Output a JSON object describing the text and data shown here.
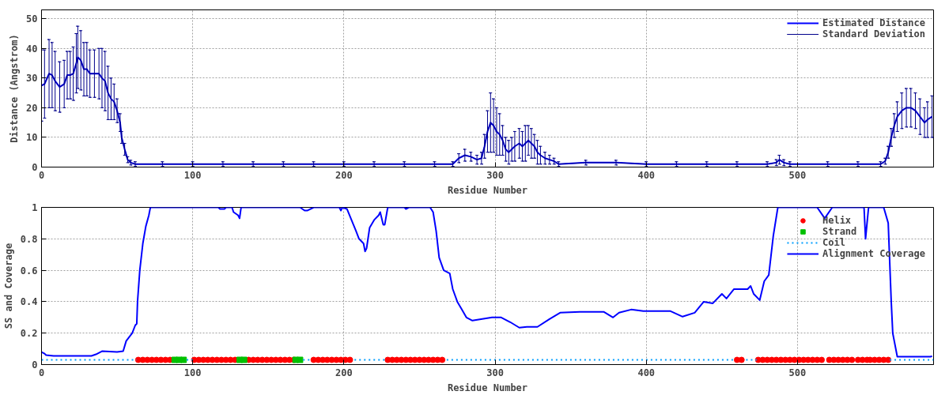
{
  "chart_data": [
    {
      "type": "line",
      "xlabel": "Residue Number",
      "ylabel": "Distance (Angstrom)",
      "xlim": [
        0,
        590
      ],
      "ylim": [
        0,
        53
      ],
      "xticks": [
        0,
        100,
        200,
        300,
        400,
        500
      ],
      "yticks": [
        0,
        10,
        20,
        30,
        40,
        50
      ],
      "grid": true,
      "legend": "top right",
      "x": [
        0,
        2,
        5,
        7,
        9,
        12,
        15,
        17,
        19,
        21,
        23,
        24,
        26,
        28,
        30,
        32,
        35,
        38,
        40,
        42,
        44,
        46,
        48,
        50,
        52,
        53,
        55,
        57,
        59,
        62,
        80,
        100,
        120,
        140,
        160,
        180,
        200,
        220,
        240,
        260,
        272,
        276,
        280,
        284,
        288,
        291,
        293,
        295,
        297,
        299,
        301,
        303,
        305,
        307,
        309,
        311,
        313,
        316,
        318,
        320,
        322,
        324,
        326,
        328,
        330,
        333,
        336,
        339,
        342,
        360,
        380,
        400,
        420,
        440,
        460,
        480,
        486,
        488,
        491,
        495,
        520,
        540,
        555,
        558,
        560,
        562,
        564,
        566,
        569,
        572,
        575,
        578,
        581,
        584,
        586,
        589
      ],
      "series": [
        {
          "name": "Estimated Distance",
          "color": "#0000ff",
          "values": [
            27.5,
            28,
            31.5,
            31,
            29,
            27,
            28,
            31,
            31,
            31.5,
            35,
            37,
            36,
            33,
            33,
            31.5,
            31.5,
            31.5,
            30,
            29,
            25,
            23,
            22,
            19,
            15,
            10,
            6,
            2.5,
            1.5,
            1,
            1,
            1,
            1,
            1,
            1,
            1,
            1,
            1,
            1,
            1,
            1,
            3,
            4,
            3.5,
            2.5,
            3,
            7,
            12,
            15,
            14,
            12,
            11,
            9,
            6,
            5,
            6,
            7,
            8,
            7,
            8,
            9,
            8,
            7,
            5,
            4,
            3,
            2.5,
            2,
            1,
            1.5,
            1.5,
            1,
            1,
            1,
            1,
            1,
            1.5,
            2.5,
            1.5,
            1,
            1,
            1,
            1,
            2,
            5,
            10,
            14,
            17,
            19,
            20,
            20,
            19,
            17,
            15,
            16,
            17
          ]
        },
        {
          "name": "Standard Deviation",
          "color": "#00008b",
          "values": [
            27.5,
            28,
            31.5,
            31,
            29,
            27,
            28,
            31,
            31,
            31.5,
            35,
            37,
            36,
            33,
            33,
            31.5,
            31.5,
            31.5,
            30,
            29,
            25,
            23,
            22,
            19,
            15,
            10,
            6,
            2.5,
            1.5,
            1,
            1,
            1,
            1,
            1,
            1,
            1,
            1,
            1,
            1,
            1,
            1,
            3,
            4,
            3.5,
            2.5,
            3,
            7,
            12,
            15,
            14,
            12,
            11,
            9,
            6,
            5,
            6,
            7,
            8,
            7,
            8,
            9,
            8,
            7,
            5,
            4,
            3,
            2.5,
            2,
            1,
            1.5,
            1.5,
            1,
            1,
            1,
            1,
            1,
            1.5,
            2.5,
            1.5,
            1,
            1,
            1,
            1,
            2,
            5,
            10,
            14,
            17,
            19,
            20,
            20,
            19,
            17,
            15,
            16,
            17
          ],
          "errors": [
            12,
            11.5,
            11.5,
            11,
            10,
            8.5,
            8,
            8,
            8,
            9,
            10,
            10.5,
            10,
            9,
            9,
            8,
            8,
            8.5,
            10,
            10,
            9,
            7,
            6,
            4,
            3,
            2,
            2,
            1,
            0.8,
            0.8,
            0.8,
            0.8,
            0.8,
            0.8,
            0.8,
            0.8,
            0.8,
            0.8,
            0.8,
            0.8,
            0.8,
            1.5,
            2,
            1.5,
            1.5,
            2,
            4,
            7,
            10,
            9,
            8,
            7,
            5,
            4,
            4,
            4,
            5,
            5,
            5,
            6,
            5,
            5,
            4,
            4,
            3,
            2,
            1.5,
            1,
            0.8,
            0.8,
            0.8,
            0.8,
            0.8,
            0.8,
            0.8,
            0.8,
            1,
            1.5,
            1,
            0.8,
            0.8,
            0.8,
            0.8,
            1,
            2,
            3,
            4,
            5,
            6,
            6.5,
            6.5,
            6,
            6,
            5,
            6,
            7
          ]
        }
      ]
    },
    {
      "type": "line",
      "xlabel": "Residue Number",
      "ylabel": "SS and Coverage",
      "xlim": [
        0,
        590
      ],
      "ylim": [
        0,
        1
      ],
      "xticks": [
        0,
        100,
        200,
        300,
        400,
        500
      ],
      "yticks": [
        0,
        0.2,
        0.4,
        0.6,
        0.8,
        1
      ],
      "grid": true,
      "legend": "top right",
      "series": [
        {
          "name": "Helix",
          "type": "scatter",
          "marker": "circle",
          "color": "#ff0000",
          "x": [
            64,
            67,
            70,
            73,
            76,
            79,
            82,
            85,
            101,
            104,
            107,
            110,
            113,
            116,
            119,
            122,
            125,
            128,
            137,
            140,
            143,
            146,
            149,
            152,
            155,
            158,
            161,
            164,
            167,
            180,
            183,
            186,
            189,
            192,
            195,
            198,
            201,
            204,
            229,
            232,
            235,
            238,
            241,
            244,
            247,
            250,
            253,
            256,
            259,
            262,
            265,
            460,
            463,
            474,
            477,
            480,
            483,
            486,
            489,
            492,
            495,
            498,
            501,
            504,
            507,
            510,
            513,
            516,
            521,
            524,
            527,
            530,
            533,
            536,
            540,
            543,
            546,
            548,
            551,
            554,
            557,
            560
          ],
          "values": [
            0.03,
            0.03,
            0.03,
            0.03,
            0.03,
            0.03,
            0.03,
            0.03,
            0.03,
            0.03,
            0.03,
            0.03,
            0.03,
            0.03,
            0.03,
            0.03,
            0.03,
            0.03,
            0.03,
            0.03,
            0.03,
            0.03,
            0.03,
            0.03,
            0.03,
            0.03,
            0.03,
            0.03,
            0.03,
            0.03,
            0.03,
            0.03,
            0.03,
            0.03,
            0.03,
            0.03,
            0.03,
            0.03,
            0.03,
            0.03,
            0.03,
            0.03,
            0.03,
            0.03,
            0.03,
            0.03,
            0.03,
            0.03,
            0.03,
            0.03,
            0.03,
            0.03,
            0.03,
            0.03,
            0.03,
            0.03,
            0.03,
            0.03,
            0.03,
            0.03,
            0.03,
            0.03,
            0.03,
            0.03,
            0.03,
            0.03,
            0.03,
            0.03,
            0.03,
            0.03,
            0.03,
            0.03,
            0.03,
            0.03,
            0.03,
            0.03,
            0.03,
            0.03,
            0.03,
            0.03,
            0.03,
            0.03
          ]
        },
        {
          "name": "Strand",
          "type": "scatter",
          "marker": "square",
          "color": "#00c000",
          "x": [
            88,
            91,
            94,
            131,
            134,
            168,
            171
          ],
          "values": [
            0.03,
            0.03,
            0.03,
            0.03,
            0.03,
            0.03,
            0.03
          ]
        },
        {
          "name": "Coil",
          "line_style": "dotted",
          "color": "#009eff",
          "x": [
            0,
            63,
            63.5,
            96,
            100,
            100.5,
            173,
            179,
            179.5,
            207,
            228,
            228.5,
            268,
            459,
            459.5,
            466,
            473,
            473.5,
            561,
            590
          ],
          "values": [
            0.03,
            0.03,
            null,
            0.03,
            0.03,
            null,
            0.03,
            0.03,
            null,
            0.03,
            0.03,
            null,
            0.03,
            0.03,
            null,
            0.03,
            0.03,
            null,
            0.03,
            0.03
          ]
        },
        {
          "name": "Alignment Coverage",
          "color": "#0000ff",
          "x": [
            0,
            2,
            3,
            8,
            33,
            36,
            40,
            50,
            54,
            56,
            60,
            62,
            63,
            63.5,
            65,
            67,
            69,
            71,
            72,
            117,
            118,
            121,
            122,
            126,
            127,
            130,
            131,
            132,
            171,
            174,
            176,
            180,
            197,
            198,
            199,
            202,
            205,
            208,
            210,
            213,
            214,
            215,
            217,
            220,
            223,
            224,
            226,
            227,
            229,
            240,
            241,
            243,
            257,
            259,
            261,
            263,
            266,
            268,
            270,
            272,
            275,
            278,
            281,
            285,
            298,
            304,
            310,
            316,
            321,
            328,
            336,
            343,
            356,
            372,
            378,
            382,
            390,
            398,
            416,
            424,
            432,
            438,
            444,
            450,
            453,
            458,
            467,
            469,
            471,
            475,
            478,
            481,
            484,
            487,
            513,
            518,
            523,
            544,
            545,
            547,
            557,
            560,
            562,
            563,
            566,
            588,
            589
          ],
          "values": [
            0.08,
            0.07,
            0.06,
            0.055,
            0.055,
            0.065,
            0.085,
            0.08,
            0.085,
            0.15,
            0.2,
            0.25,
            0.26,
            0.4,
            0.6,
            0.77,
            0.88,
            0.95,
            1,
            1,
            0.99,
            0.99,
            1,
            1,
            0.97,
            0.95,
            0.93,
            1,
            1,
            0.98,
            0.98,
            1,
            1,
            0.98,
            1,
            0.99,
            0.92,
            0.85,
            0.8,
            0.77,
            0.72,
            0.74,
            0.87,
            0.92,
            0.95,
            0.97,
            0.89,
            0.89,
            1,
            1,
            0.99,
            1,
            1,
            0.97,
            0.85,
            0.68,
            0.6,
            0.59,
            0.58,
            0.48,
            0.4,
            0.35,
            0.3,
            0.28,
            0.3,
            0.3,
            0.27,
            0.235,
            0.24,
            0.24,
            0.29,
            0.33,
            0.335,
            0.335,
            0.3,
            0.33,
            0.35,
            0.34,
            0.34,
            0.305,
            0.33,
            0.4,
            0.39,
            0.45,
            0.42,
            0.48,
            0.48,
            0.5,
            0.45,
            0.41,
            0.53,
            0.57,
            0.82,
            1,
            1,
            0.93,
            1,
            1,
            0.8,
            1,
            1,
            0.9,
            0.4,
            0.2,
            0.05,
            0.05,
            0.055
          ]
        }
      ]
    }
  ]
}
